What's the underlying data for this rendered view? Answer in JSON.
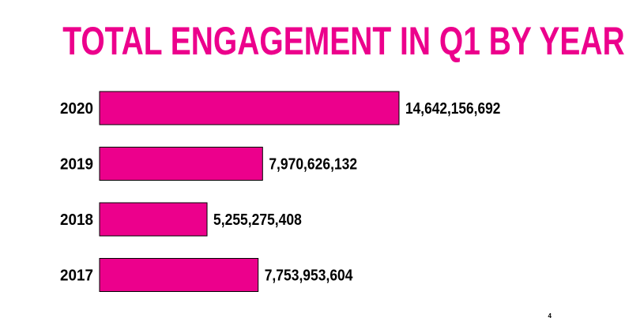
{
  "slide": {
    "page_number": "4"
  },
  "colors": {
    "accent": "#ec008c",
    "bar_stroke": "#000000"
  },
  "chart_data": {
    "type": "bar",
    "orientation": "horizontal",
    "title": "TOTAL ENGAGEMENT IN Q1 BY YEAR",
    "categories": [
      "2020",
      "2019",
      "2018",
      "2017"
    ],
    "values": [
      14642156692,
      7970626132,
      5255275408,
      7753953604
    ],
    "value_labels": [
      "14,642,156,692",
      "7,970,626,132",
      "5,255,275,408",
      "7,753,953,604"
    ],
    "xlim": [
      0,
      14642156692
    ],
    "grid": false,
    "legend": "none"
  }
}
